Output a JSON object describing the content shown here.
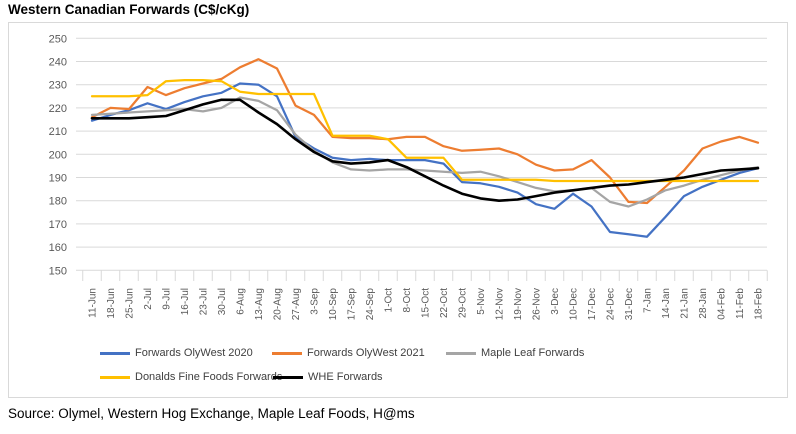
{
  "page": {
    "title": "Western Canadian Forwards (C$/cKg)",
    "source_note": "Source: Olymel, Western Hog Exchange, Maple Leaf Foods, H@ms"
  },
  "chart_data": {
    "type": "line",
    "title": "Western Canadian Forwards (C$/cKg)",
    "xlabel": "",
    "ylabel": "",
    "ylim": [
      150,
      250
    ],
    "ytick_step": 10,
    "grid": true,
    "legend_position": "bottom",
    "categories": [
      "11-Jun",
      "18-Jun",
      "25-Jun",
      "2-Jul",
      "9-Jul",
      "16-Jul",
      "23-Jul",
      "30-Jul",
      "6-Aug",
      "13-Aug",
      "20-Aug",
      "27-Aug",
      "3-Sep",
      "10-Sep",
      "17-Sep",
      "24-Sep",
      "1-Oct",
      "8-Oct",
      "15-Oct",
      "22-Oct",
      "29-Oct",
      "5-Nov",
      "12-Nov",
      "19-Nov",
      "26-Nov",
      "3-Dec",
      "10-Dec",
      "17-Dec",
      "24-Dec",
      "31-Dec",
      "7-Jan",
      "14-Jan",
      "21-Jan",
      "28-Jan",
      "04-Feb",
      "11-Feb",
      "18-Feb"
    ],
    "series": [
      {
        "name": "Forwards OlyWest 2020",
        "color": "#4472C4",
        "values": [
          214.5,
          217,
          219,
          222,
          219.5,
          222.5,
          225,
          226.5,
          230.5,
          230,
          225,
          207.5,
          202.5,
          198.5,
          197.5,
          198,
          197.5,
          197.5,
          197.5,
          196,
          188,
          187.5,
          186,
          183.5,
          178.5,
          176.5,
          183,
          177.5,
          166.5,
          165.5,
          164.5,
          173,
          182,
          186,
          189,
          192,
          194
        ]
      },
      {
        "name": "Forwards OlyWest 2021",
        "color": "#ED7D31",
        "values": [
          216,
          220,
          219.5,
          229,
          225.5,
          228.5,
          230.5,
          232.5,
          237.5,
          241,
          237,
          221,
          217,
          207.5,
          207,
          207,
          206.5,
          207.5,
          207.5,
          203.5,
          201.5,
          202,
          202.5,
          200,
          195.5,
          193,
          193.5,
          197.5,
          190,
          179.5,
          179,
          186,
          193,
          202.5,
          205.5,
          207.5,
          205
        ]
      },
      {
        "name": "Maple Leaf Forwards",
        "color": "#A5A5A5",
        "values": [
          217,
          217.5,
          218,
          218.5,
          219,
          219.5,
          218.5,
          220,
          224.5,
          223,
          219,
          208.5,
          201.5,
          196.5,
          193.5,
          193,
          193.5,
          193.5,
          193,
          192.5,
          192,
          192.5,
          190.5,
          188,
          185.5,
          184,
          184.5,
          185.5,
          179.5,
          177.5,
          180.5,
          184.5,
          186.5,
          189,
          191,
          193,
          194.5
        ]
      },
      {
        "name": "Donalds Fine Foods Forwards",
        "color": "#FFC000",
        "values": [
          225,
          225,
          225,
          225.5,
          231.5,
          232,
          232,
          231.5,
          227,
          226,
          226,
          226,
          226,
          208,
          208,
          208,
          206.5,
          198.5,
          198.5,
          198.5,
          189,
          189,
          189,
          189,
          189,
          188.5,
          188.5,
          188.5,
          188.5,
          188.5,
          188.5,
          188.5,
          188.5,
          188.5,
          188.5,
          188.5,
          188.5
        ]
      },
      {
        "name": "WHE Forwards",
        "color": "#000000",
        "values": [
          215.5,
          215.5,
          215.5,
          216,
          216.5,
          219,
          221.5,
          223.5,
          223.5,
          218,
          213,
          206.5,
          201,
          197,
          196,
          196.5,
          197.5,
          194.5,
          190.5,
          186.5,
          183,
          181,
          180,
          180.5,
          182,
          183.5,
          184.5,
          185.5,
          186.5,
          187,
          188,
          189,
          190,
          191.5,
          193,
          193.5,
          194
        ]
      }
    ],
    "colors": {
      "gridline": "#D9D9D9",
      "axis_label": "#595959",
      "frame_border": "#D9D9D9"
    }
  }
}
